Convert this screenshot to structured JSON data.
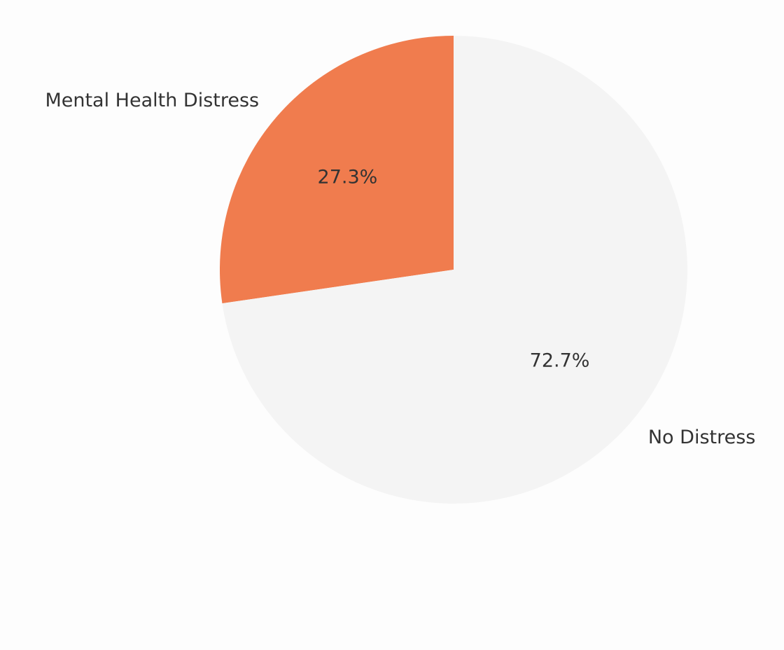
{
  "chart_data": {
    "type": "pie",
    "title": "",
    "start_angle_deg": 90,
    "direction": "counterclockwise",
    "slices": [
      {
        "label": "Mental Health Distress",
        "value": 27.3,
        "pct_label": "27.3%",
        "color": "#f07c4e"
      },
      {
        "label": "No Distress",
        "value": 72.7,
        "pct_label": "72.7%",
        "color": "#f4f4f4"
      }
    ]
  }
}
